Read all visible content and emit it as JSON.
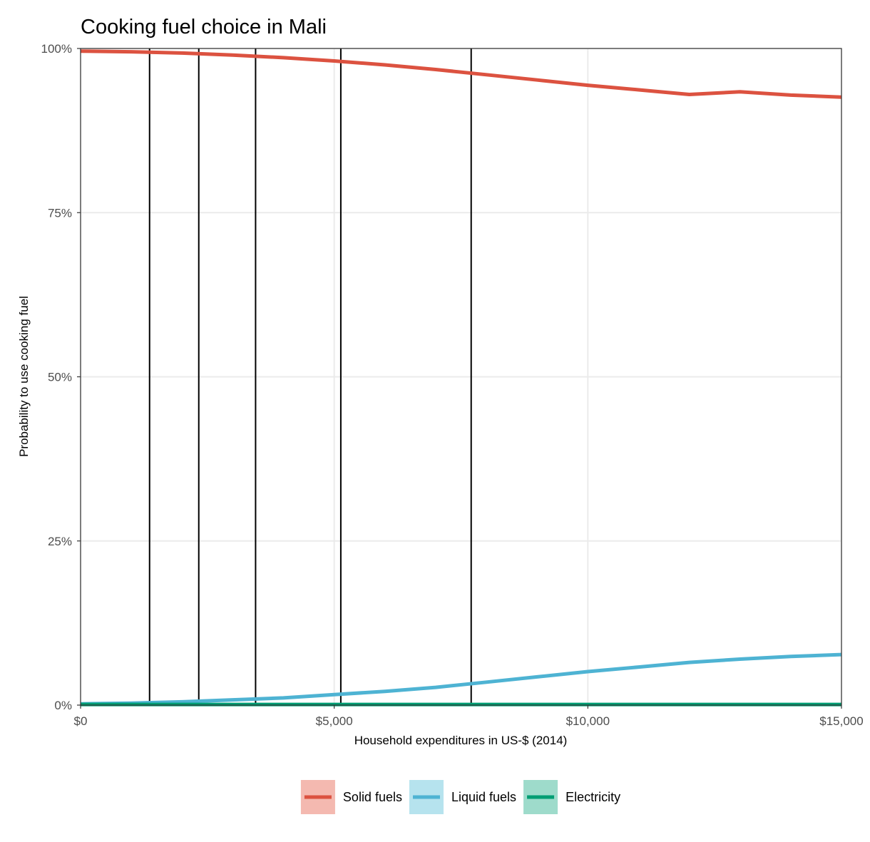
{
  "chart_data": {
    "type": "line",
    "title": "Cooking fuel choice in Mali",
    "xlabel": "Household expenditures in US-$ (2014)",
    "ylabel": "Probability to use cooking fuel",
    "xlim": [
      0,
      15000
    ],
    "ylim": [
      0,
      1
    ],
    "x_ticks": [
      {
        "value": 0,
        "label": "$0"
      },
      {
        "value": 5000,
        "label": "$5,000"
      },
      {
        "value": 10000,
        "label": "$10,000"
      },
      {
        "value": 15000,
        "label": "$15,000"
      }
    ],
    "y_ticks": [
      {
        "value": 0,
        "label": "0%"
      },
      {
        "value": 0.25,
        "label": "25%"
      },
      {
        "value": 0.5,
        "label": "50%"
      },
      {
        "value": 0.75,
        "label": "75%"
      },
      {
        "value": 1,
        "label": "100%"
      }
    ],
    "grid": true,
    "legend_position": "bottom",
    "vertical_lines": [
      1360,
      2330,
      3450,
      5130,
      7700
    ],
    "series": [
      {
        "name": "Solid fuels",
        "color": "#DC5240",
        "legend_fill": "#F4B9B0",
        "x": [
          0,
          1000,
          2000,
          3000,
          4000,
          5000,
          6000,
          7000,
          8000,
          9000,
          10000,
          11000,
          12000,
          13000,
          14000,
          15000
        ],
        "y": [
          0.996,
          0.995,
          0.993,
          0.99,
          0.986,
          0.981,
          0.975,
          0.968,
          0.96,
          0.952,
          0.944,
          0.937,
          0.93,
          0.934,
          0.929,
          0.926
        ]
      },
      {
        "name": "Liquid fuels",
        "color": "#4EB3D3",
        "legend_fill": "#B6E3EE",
        "x": [
          0,
          1000,
          2000,
          3000,
          4000,
          5000,
          6000,
          7000,
          8000,
          9000,
          10000,
          11000,
          12000,
          13000,
          14000,
          15000
        ],
        "y": [
          0.002,
          0.003,
          0.005,
          0.008,
          0.011,
          0.016,
          0.021,
          0.027,
          0.035,
          0.043,
          0.051,
          0.058,
          0.065,
          0.07,
          0.074,
          0.077
        ]
      },
      {
        "name": "Electricity",
        "color": "#009E73",
        "legend_fill": "#9EDBCB",
        "x": [
          0,
          15000
        ],
        "y": [
          0.001,
          0.001
        ]
      }
    ]
  }
}
